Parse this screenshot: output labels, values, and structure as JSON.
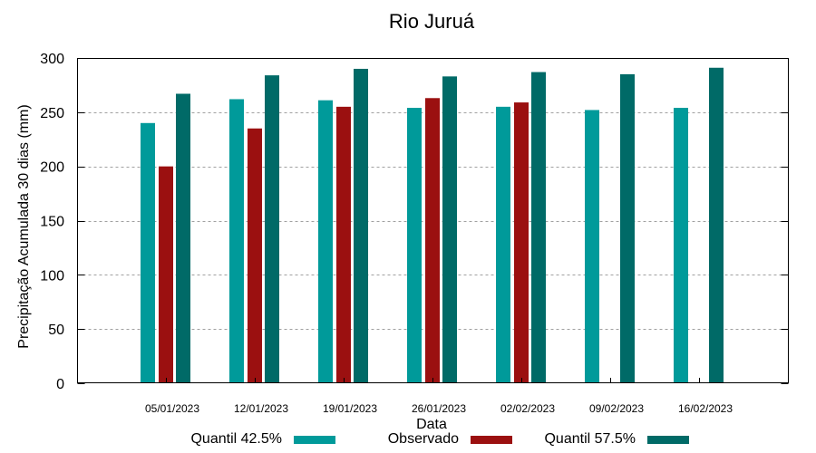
{
  "chart_data": {
    "type": "bar",
    "title": "Rio Juruá",
    "xlabel": "Data",
    "ylabel": "Precipitação Acumulada 30 dias (mm)",
    "ylim": [
      0,
      300
    ],
    "yticks": [
      0,
      50,
      100,
      150,
      200,
      250,
      300
    ],
    "grid": true,
    "legend_position": "bottom",
    "categories": [
      "05/01/2023",
      "12/01/2023",
      "19/01/2023",
      "26/01/2023",
      "02/02/2023",
      "09/02/2023",
      "16/02/2023"
    ],
    "series": [
      {
        "name": "Quantil 42.5%",
        "color": "#009a9a",
        "values": [
          240,
          262,
          261,
          254,
          255,
          252,
          254
        ]
      },
      {
        "name": "Observado",
        "color": "#9b1010",
        "values": [
          200,
          235,
          255,
          263,
          259,
          null,
          null
        ]
      },
      {
        "name": "Quantil 57.5%",
        "color": "#006a67",
        "values": [
          267,
          284,
          290,
          283,
          287,
          285,
          291
        ]
      }
    ]
  }
}
